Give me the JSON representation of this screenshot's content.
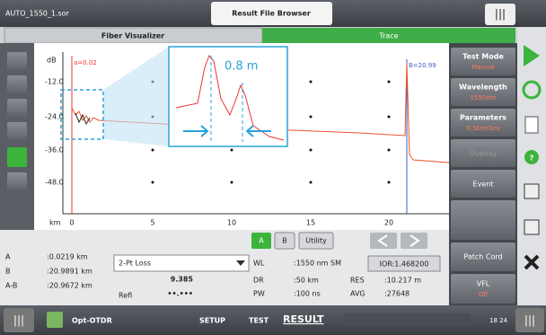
{
  "top_bar": {
    "file_name": "AUTO_1550_1.sor",
    "tab": "Result File Browser"
  },
  "tabs": [
    "Fiber Visualizer",
    "Trace"
  ],
  "trace": {
    "y_unit": "dB",
    "y_ticks": [
      "-12.0",
      "-24.0",
      "-36.0",
      "-48.0"
    ],
    "x_unit": "km",
    "x_ticks": [
      "0",
      "5",
      "10",
      "15",
      "20"
    ],
    "cursor_a": "a=0.02",
    "cursor_b": "B=20.99",
    "zoom_label": "0.8 m"
  },
  "side_buttons": [
    {
      "label": "Test Mode",
      "value": "Manual"
    },
    {
      "label": "Wavelength",
      "value": "1550nm"
    },
    {
      "label": "Parameters",
      "value": "0.5km/3ns"
    },
    {
      "label": "Overlay"
    },
    {
      "label": "Event"
    },
    {
      "label": "Patch Cord"
    },
    {
      "label": "VFL",
      "value": "Off"
    }
  ],
  "controls": {
    "a": "A",
    "b": "B",
    "utility": "Utility"
  },
  "markers": [
    {
      "label": "A",
      "value": ":0.0219 km"
    },
    {
      "label": "B",
      "value": ":20.9891 km"
    },
    {
      "label": "A-B",
      "value": ":20.9672 km"
    }
  ],
  "measurement": {
    "mode": "2-Pt Loss",
    "loss": "9.385",
    "refl_label": "Refl",
    "refl": "••.•••"
  },
  "settings": [
    {
      "label": "WL",
      "value": ":1550 nm SM"
    },
    {
      "label": "DR",
      "value": ":50 km"
    },
    {
      "label": "PW",
      "value": ":100 ns"
    },
    {
      "label": "RES",
      "value": ":10.217 m"
    },
    {
      "label": "AVG",
      "value": ":27648"
    }
  ],
  "ior": "IOR:1.468200",
  "bottom_bar": {
    "app": "Opt-OTDR",
    "menu": [
      "SETUP",
      "TEST",
      "RESULT"
    ],
    "time": "18 24"
  }
}
